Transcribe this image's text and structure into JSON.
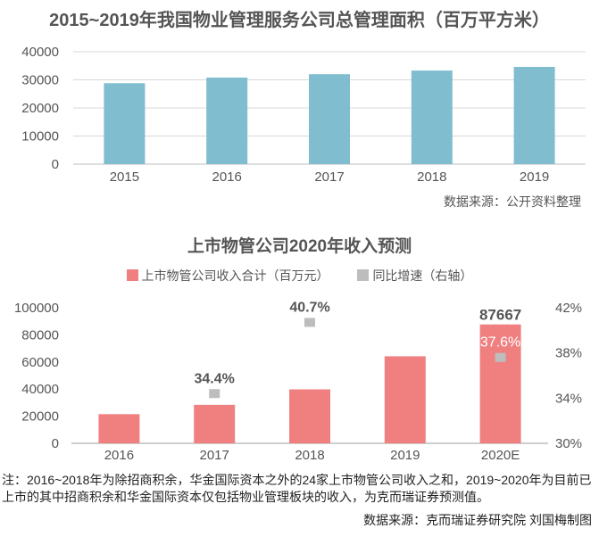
{
  "chart_data": [
    {
      "type": "bar",
      "title": "2015~2019年我国物业管理服务公司总管理面积（百万平方米）",
      "categories": [
        "2015",
        "2016",
        "2017",
        "2018",
        "2019"
      ],
      "values": [
        28800,
        30800,
        32000,
        33300,
        34600
      ],
      "ylim": [
        0,
        40000
      ],
      "yticks": [
        0,
        10000,
        20000,
        30000,
        40000
      ],
      "xlabel": "",
      "ylabel": "",
      "grid": true,
      "source": "数据来源：公开资料整理",
      "colors": {
        "bar": "#7fbdcf",
        "grid": "#d8d8d8",
        "text": "#555555"
      }
    },
    {
      "type": "bar+scatter",
      "title": "上市物管公司2020年收入预测",
      "categories": [
        "2016",
        "2017",
        "2018",
        "2019",
        "2020E"
      ],
      "series": [
        {
          "name": "上市物管公司收入合计（百万元）",
          "axis": "left",
          "values": [
            21500,
            28400,
            39800,
            64200,
            87667
          ],
          "data_labels": [
            "",
            "",
            "",
            "",
            "87667"
          ]
        },
        {
          "name": "同比增速（右轴）",
          "axis": "right",
          "values": [
            null,
            34.4,
            40.7,
            null,
            37.6
          ],
          "data_labels": [
            "",
            "34.4%",
            "40.7%",
            "",
            "37.6%"
          ]
        }
      ],
      "ylim_left": [
        0,
        100000
      ],
      "yticks_left": [
        0,
        20000,
        40000,
        60000,
        80000,
        100000
      ],
      "ylim_right": [
        30,
        42
      ],
      "yticks_right": [
        "30%",
        "34%",
        "38%",
        "42%"
      ],
      "yticks_right_values": [
        30,
        34,
        38,
        42
      ],
      "legend": "top",
      "colors": {
        "bar": "#f08080",
        "marker": "#bdbdbd",
        "text": "#555555"
      }
    }
  ],
  "note": "注：2016~2018年为除招商积余，华金国际资本之外的24家上市物管公司收入之和，2019~2020年为目前已上市的其中招商积余和华金国际资本仅包括物业管理板块的收入，为克而瑞证券预测值。",
  "source2": "数据来源：克而瑞证券研究院 刘国梅制图"
}
